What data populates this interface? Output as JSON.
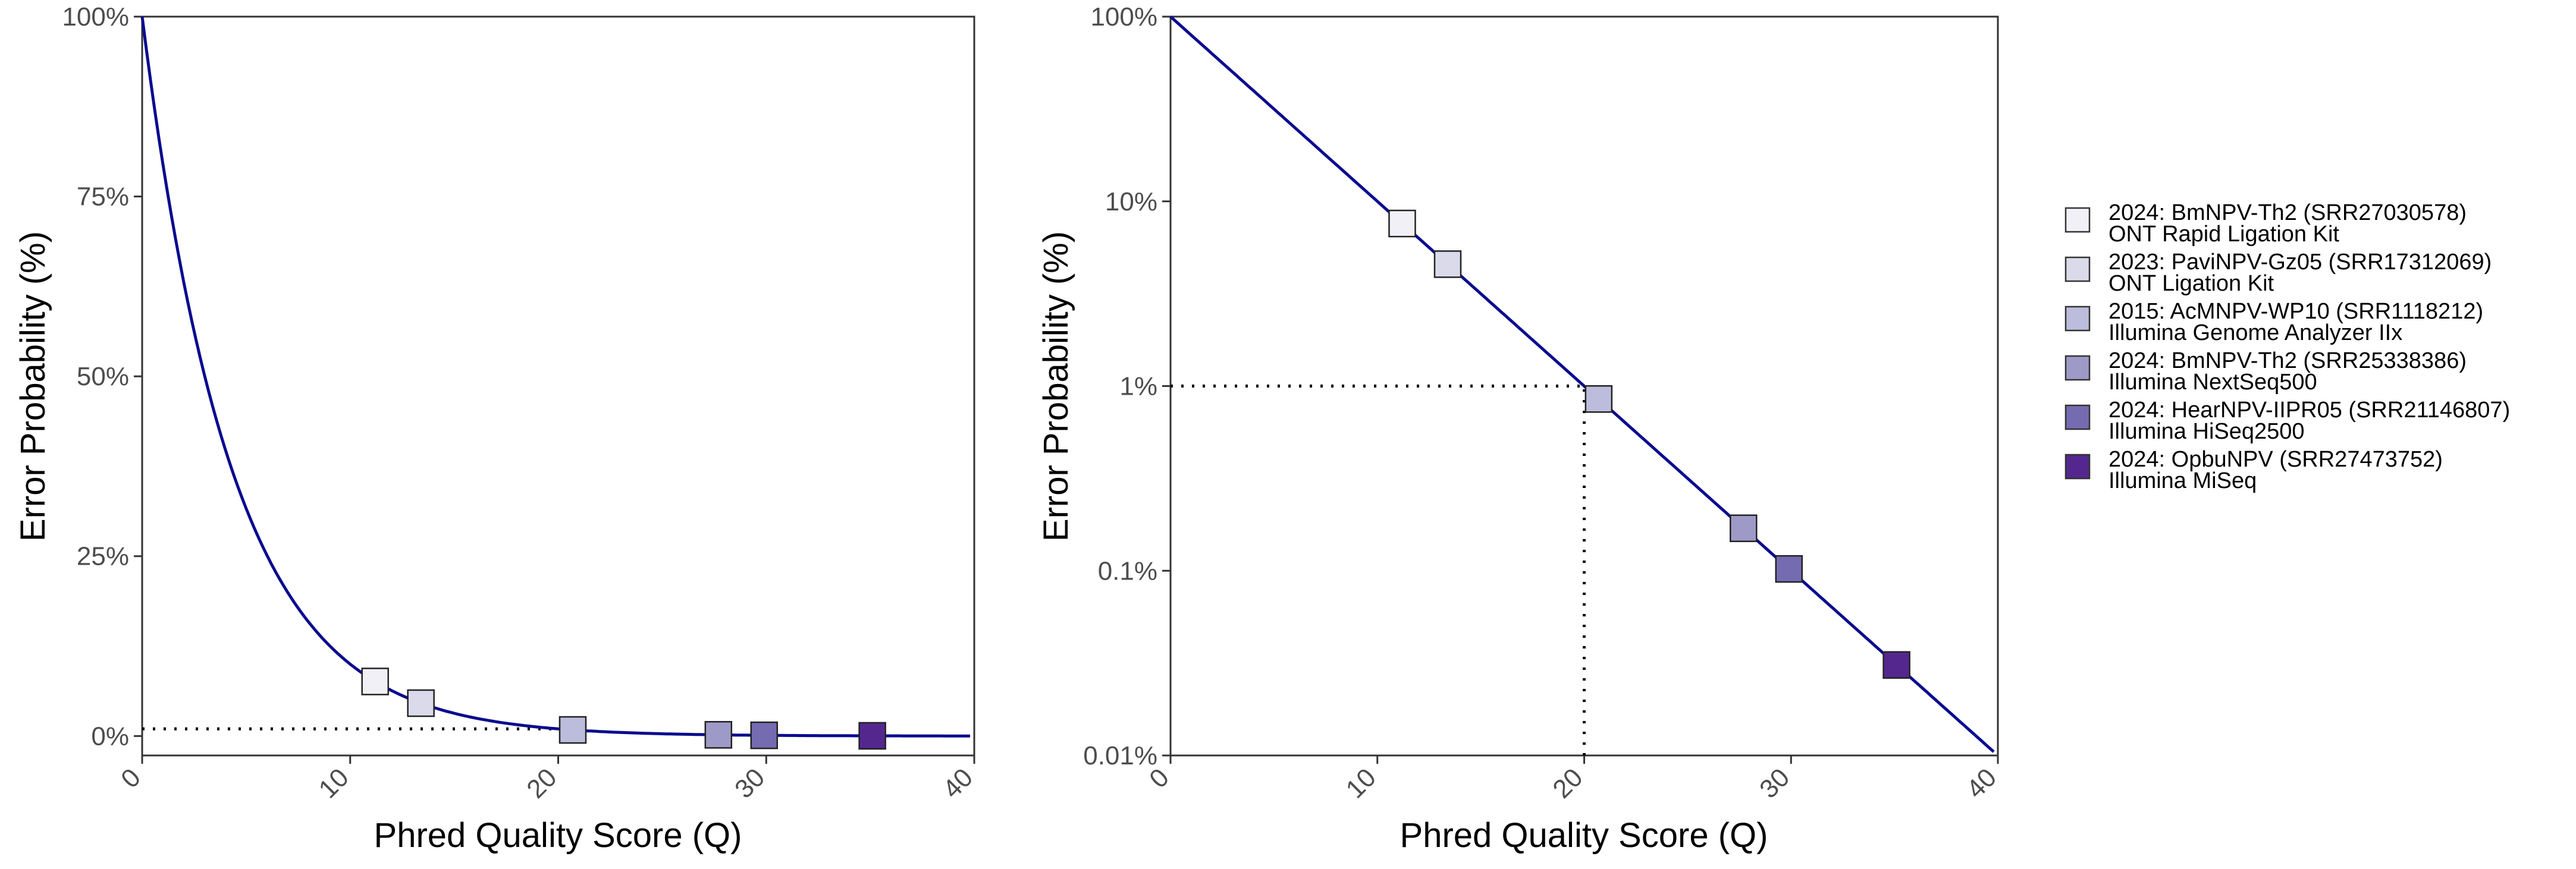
{
  "chart_data": [
    {
      "type": "line",
      "scale": "linear",
      "xlabel": "Phred Quality Score (Q)",
      "ylabel": "Error Probability (%)",
      "xlim": [
        0,
        40
      ],
      "ylim": [
        -0.027,
        1
      ],
      "xticks": [
        0,
        10,
        20,
        30,
        40
      ],
      "xtick_labels": [
        "0",
        "10",
        "20",
        "30",
        "40"
      ],
      "yticks": [
        0,
        0.25,
        0.5,
        0.75,
        1
      ],
      "ytick_labels": [
        "0%",
        "25%",
        "50%",
        "75%",
        "100%"
      ],
      "curve": "P = 10^(-Q/10)",
      "reference_lines": [
        {
          "type": "horizontal",
          "y": 0.01,
          "x_from": 0,
          "x_to": 20,
          "style": "dotted"
        }
      ],
      "grid": false
    },
    {
      "type": "line",
      "scale": "log10-y",
      "xlabel": "Phred Quality Score (Q)",
      "ylabel": "Error Probability (%)",
      "xlim": [
        0,
        40
      ],
      "ylim": [
        0.0001,
        1
      ],
      "xticks": [
        0,
        10,
        20,
        30,
        40
      ],
      "xtick_labels": [
        "0",
        "10",
        "20",
        "30",
        "40"
      ],
      "yticks": [
        0.0001,
        0.001,
        0.01,
        0.1,
        1
      ],
      "ytick_labels": [
        "0.01%",
        "0.1%",
        "1%",
        "10%",
        "100%"
      ],
      "curve": "P = 10^(-Q/10)",
      "reference_lines": [
        {
          "type": "horizontal",
          "y": 0.01,
          "x_from": 0,
          "x_to": 20,
          "style": "dotted"
        },
        {
          "type": "vertical",
          "x": 20,
          "y_from": 0.0001,
          "y_to": 0.01,
          "style": "dotted"
        }
      ],
      "grid": false
    }
  ],
  "line_color": "#0b0b8f",
  "series": [
    {
      "q": 11.2,
      "color": "#f2f0f7",
      "title": "2024: BmNPV-Th2 (SRR27030578)",
      "subtitle": "ONT Rapid Ligation Kit"
    },
    {
      "q": 13.4,
      "color": "#dadaeb",
      "title": "2023: PaviNPV-Gz05 (SRR17312069)",
      "subtitle": "ONT Ligation Kit"
    },
    {
      "q": 20.7,
      "color": "#bcbddc",
      "title": "2015: AcMNPV-WP10 (SRR1118212)",
      "subtitle": "Illumina Genome Analyzer IIx"
    },
    {
      "q": 27.7,
      "color": "#9e9ac8",
      "title": "2024: BmNPV-Th2 (SRR25338386)",
      "subtitle": "Illumina NextSeq500"
    },
    {
      "q": 29.9,
      "color": "#756bb1",
      "title": "2024: HearNPV-IIPR05 (SRR21146807)",
      "subtitle": "Illumina HiSeq2500"
    },
    {
      "q": 35.1,
      "color": "#54278f",
      "title": "2024: OpbuNPV (SRR27473752)",
      "subtitle": "Illumina MiSeq"
    }
  ],
  "legend_position": "right"
}
